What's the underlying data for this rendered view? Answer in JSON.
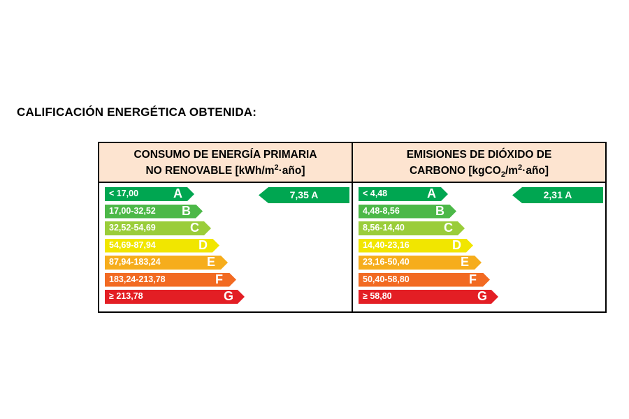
{
  "page_title": "CALIFICACIÓN ENERGÉTICA OBTENIDA:",
  "energy": {
    "header_line1": "CONSUMO DE ENERGÍA PRIMARIA",
    "header_line2_pre": "NO RENOVABLE [kWh/m",
    "header_line2_sup": "2",
    "header_line2_post": "·año]",
    "rows": [
      {
        "range": "< 17,00",
        "letter": "A",
        "color": "#00a651"
      },
      {
        "range": "17,00-32,52",
        "letter": "B",
        "color": "#4cb848"
      },
      {
        "range": "32,52-54,69",
        "letter": "C",
        "color": "#9acd3a"
      },
      {
        "range": "54,69-87,94",
        "letter": "D",
        "color": "#f1e600"
      },
      {
        "range": "87,94-183,24",
        "letter": "E",
        "color": "#f6ad1c"
      },
      {
        "range": "183,24-213,78",
        "letter": "F",
        "color": "#f26a22"
      },
      {
        "range": "≥ 213,78",
        "letter": "G",
        "color": "#e31e24"
      }
    ],
    "result": "7,35 A",
    "result_color": "#00a651"
  },
  "co2": {
    "header_line1": "EMISIONES DE DIÓXIDO DE",
    "header_line2_pre": "CARBONO [kgCO",
    "header_line2_sub": "2",
    "header_line2_mid": "/m",
    "header_line2_sup": "2",
    "header_line2_post": "·año]",
    "rows": [
      {
        "range": "< 4,48",
        "letter": "A",
        "color": "#00a651"
      },
      {
        "range": "4,48-8,56",
        "letter": "B",
        "color": "#4cb848"
      },
      {
        "range": "8,56-14,40",
        "letter": "C",
        "color": "#9acd3a"
      },
      {
        "range": "14,40-23,16",
        "letter": "D",
        "color": "#f1e600"
      },
      {
        "range": "23,16-50,40",
        "letter": "E",
        "color": "#f6ad1c"
      },
      {
        "range": "50,40-58,80",
        "letter": "F",
        "color": "#f26a22"
      },
      {
        "range": "≥ 58,80",
        "letter": "G",
        "color": "#e31e24"
      }
    ],
    "result": "2,31 A",
    "result_color": "#00a651"
  }
}
